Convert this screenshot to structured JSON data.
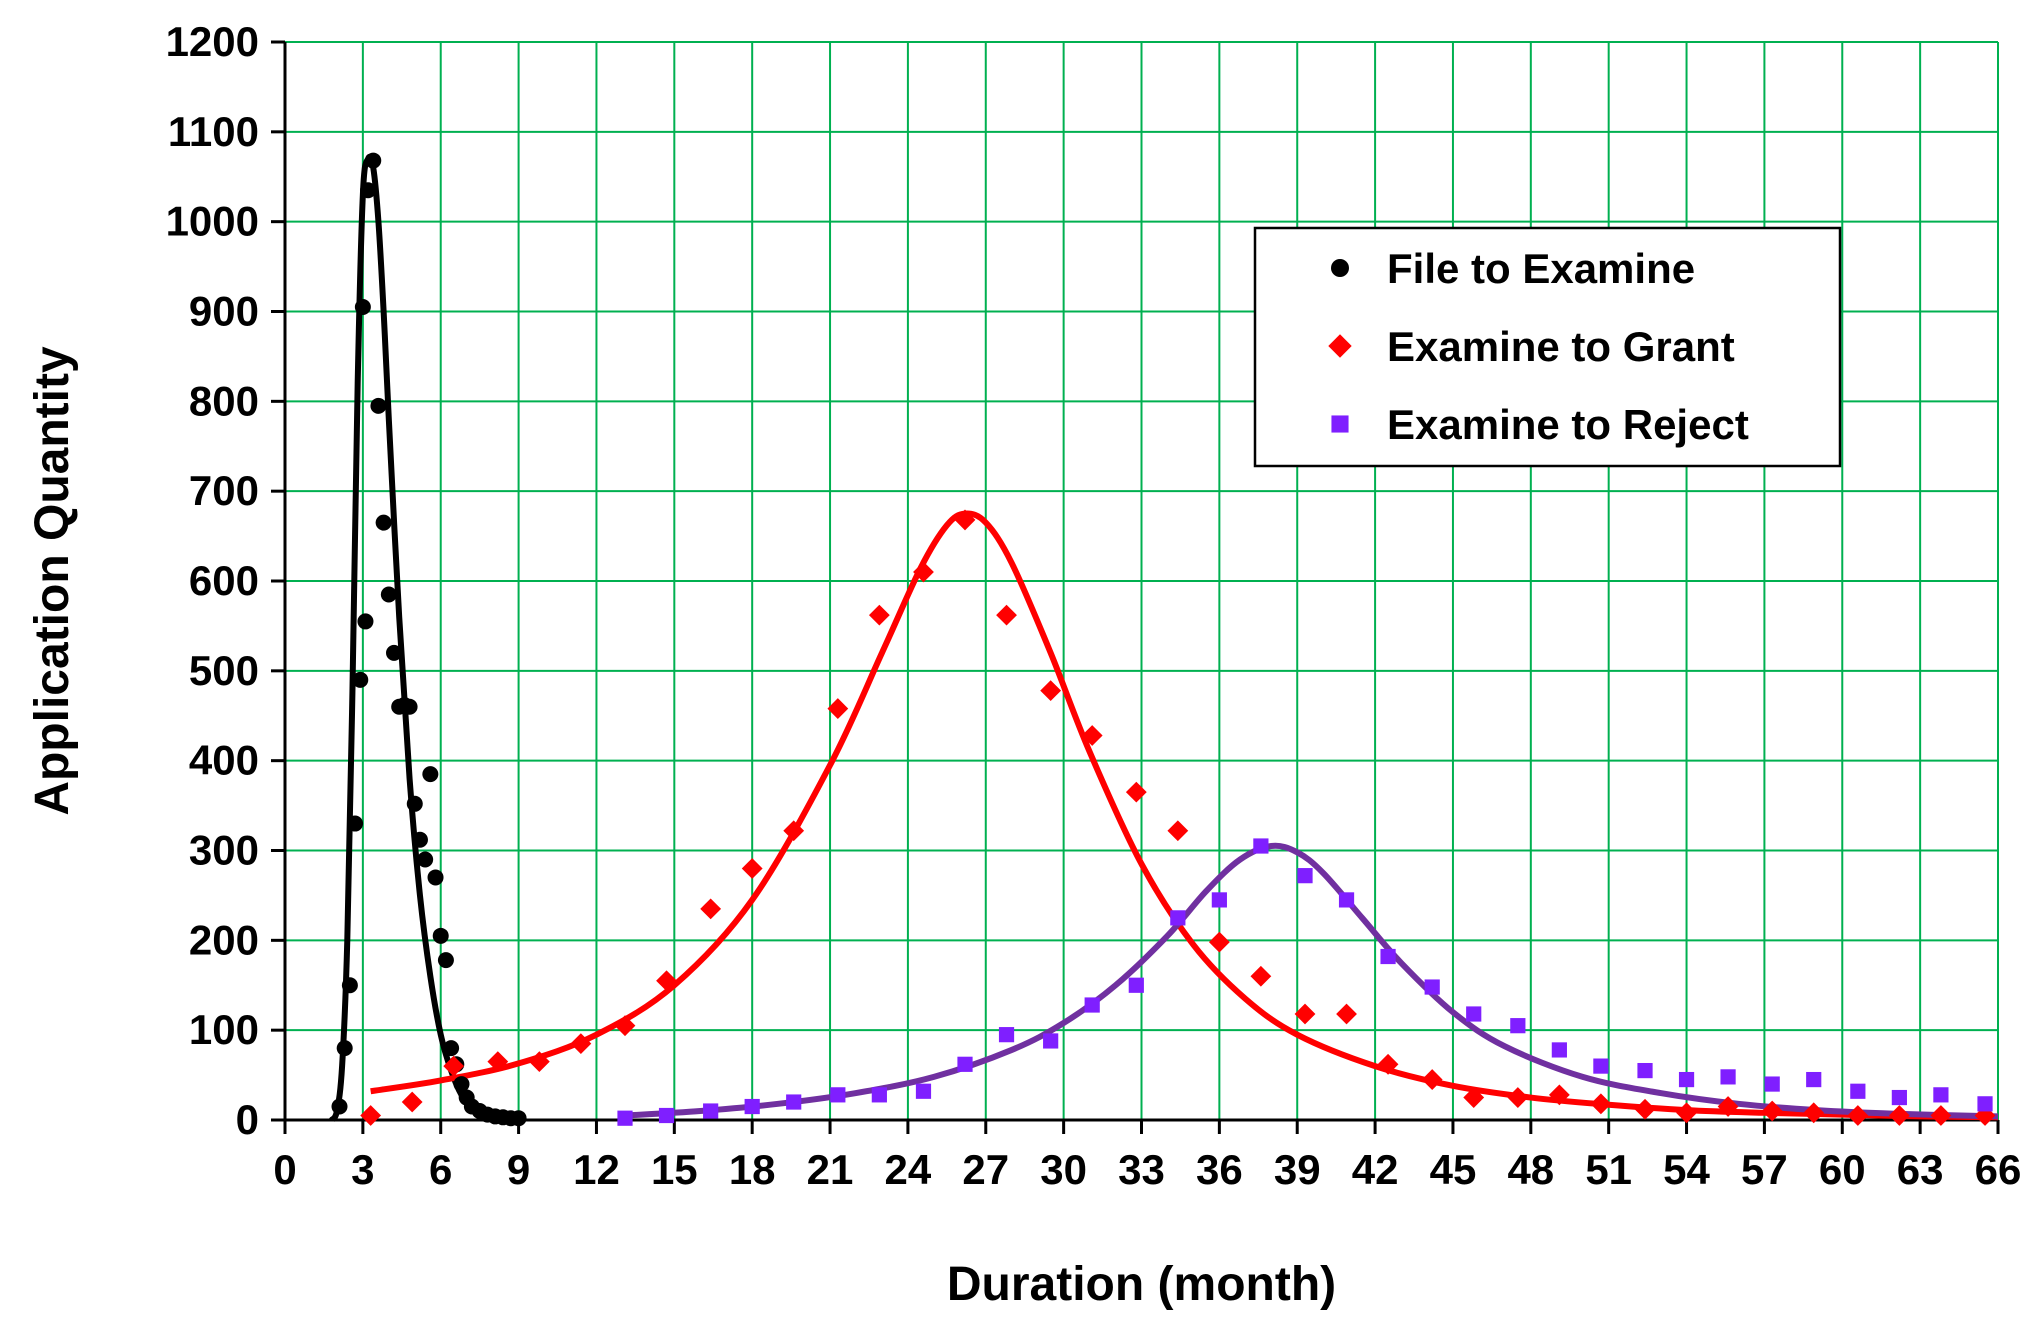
{
  "chart_data": {
    "type": "scatter",
    "title": "",
    "xlabel": "Duration (month)",
    "ylabel": "Application Quantity",
    "xlim": [
      0,
      66
    ],
    "ylim": [
      0,
      1200
    ],
    "xticks": [
      0,
      3,
      6,
      9,
      12,
      15,
      18,
      21,
      24,
      27,
      30,
      33,
      36,
      39,
      42,
      45,
      48,
      51,
      54,
      57,
      60,
      63,
      66
    ],
    "yticks": [
      0,
      100,
      200,
      300,
      400,
      500,
      600,
      700,
      800,
      900,
      1000,
      1100,
      1200
    ],
    "grid": true,
    "grid_color": "#00b050",
    "legend_position": "top-right",
    "series": [
      {
        "name": "File to Examine",
        "marker": "circle",
        "color": "#000000",
        "points": [
          [
            2.1,
            15
          ],
          [
            2.3,
            80
          ],
          [
            2.5,
            150
          ],
          [
            2.7,
            330
          ],
          [
            2.9,
            490
          ],
          [
            3.1,
            555
          ],
          [
            3.0,
            905
          ],
          [
            3.2,
            1035
          ],
          [
            3.4,
            1068
          ],
          [
            3.6,
            795
          ],
          [
            3.8,
            665
          ],
          [
            4.0,
            585
          ],
          [
            4.2,
            520
          ],
          [
            4.4,
            460
          ],
          [
            4.6,
            462
          ],
          [
            4.8,
            460
          ],
          [
            5.0,
            352
          ],
          [
            5.2,
            312
          ],
          [
            5.4,
            290
          ],
          [
            5.6,
            385
          ],
          [
            5.8,
            270
          ],
          [
            6.0,
            205
          ],
          [
            6.2,
            178
          ],
          [
            6.4,
            80
          ],
          [
            6.6,
            62
          ],
          [
            6.8,
            40
          ],
          [
            7.0,
            25
          ],
          [
            7.2,
            15
          ],
          [
            7.5,
            10
          ],
          [
            7.8,
            6
          ],
          [
            8.1,
            4
          ],
          [
            8.4,
            3
          ],
          [
            8.7,
            2
          ],
          [
            9.0,
            2
          ]
        ],
        "fit": [
          [
            1.8,
            0
          ],
          [
            2.0,
            10
          ],
          [
            2.2,
            60
          ],
          [
            2.4,
            200
          ],
          [
            2.6,
            480
          ],
          [
            2.8,
            820
          ],
          [
            3.0,
            1030
          ],
          [
            3.2,
            1070
          ],
          [
            3.4,
            1060
          ],
          [
            3.6,
            1000
          ],
          [
            3.8,
            900
          ],
          [
            4.0,
            780
          ],
          [
            4.4,
            560
          ],
          [
            4.8,
            380
          ],
          [
            5.2,
            250
          ],
          [
            5.6,
            160
          ],
          [
            6.0,
            95
          ],
          [
            6.4,
            55
          ],
          [
            6.8,
            28
          ],
          [
            7.2,
            14
          ],
          [
            7.6,
            6
          ],
          [
            8.0,
            3
          ],
          [
            8.6,
            1
          ],
          [
            9.2,
            0
          ]
        ]
      },
      {
        "name": "Examine to Grant",
        "marker": "diamond",
        "color": "#ff0000",
        "points": [
          [
            3.3,
            5
          ],
          [
            4.9,
            20
          ],
          [
            6.5,
            60
          ],
          [
            8.2,
            65
          ],
          [
            9.8,
            65
          ],
          [
            11.4,
            85
          ],
          [
            13.1,
            105
          ],
          [
            14.7,
            155
          ],
          [
            16.4,
            235
          ],
          [
            18.0,
            280
          ],
          [
            19.6,
            322
          ],
          [
            21.3,
            458
          ],
          [
            22.9,
            562
          ],
          [
            24.6,
            610
          ],
          [
            26.2,
            668
          ],
          [
            27.8,
            562
          ],
          [
            29.5,
            478
          ],
          [
            31.1,
            428
          ],
          [
            32.8,
            365
          ],
          [
            34.4,
            322
          ],
          [
            36.0,
            198
          ],
          [
            37.6,
            160
          ],
          [
            39.3,
            118
          ],
          [
            40.9,
            118
          ],
          [
            42.5,
            62
          ],
          [
            44.2,
            45
          ],
          [
            45.8,
            25
          ],
          [
            47.5,
            25
          ],
          [
            49.1,
            28
          ],
          [
            50.7,
            18
          ],
          [
            52.4,
            12
          ],
          [
            54.0,
            8
          ],
          [
            55.6,
            15
          ],
          [
            57.3,
            10
          ],
          [
            58.9,
            8
          ],
          [
            60.6,
            5
          ],
          [
            62.2,
            5
          ],
          [
            63.8,
            5
          ],
          [
            65.5,
            5
          ]
        ],
        "fit": [
          [
            3.3,
            32
          ],
          [
            6,
            44
          ],
          [
            9,
            63
          ],
          [
            12,
            95
          ],
          [
            15,
            150
          ],
          [
            18,
            245
          ],
          [
            21,
            395
          ],
          [
            23,
            520
          ],
          [
            24.5,
            615
          ],
          [
            25.5,
            662
          ],
          [
            26.2,
            675
          ],
          [
            27,
            665
          ],
          [
            28,
            620
          ],
          [
            29.5,
            520
          ],
          [
            31,
            410
          ],
          [
            33,
            285
          ],
          [
            35,
            195
          ],
          [
            37,
            135
          ],
          [
            39,
            95
          ],
          [
            42,
            60
          ],
          [
            45,
            38
          ],
          [
            48,
            25
          ],
          [
            51,
            17
          ],
          [
            54,
            11
          ],
          [
            57,
            8
          ],
          [
            60,
            6
          ],
          [
            63,
            4
          ],
          [
            66,
            3
          ]
        ]
      },
      {
        "name": "Examine to Reject",
        "marker": "square",
        "color": "#7f1fff",
        "points": [
          [
            13.1,
            2
          ],
          [
            14.7,
            5
          ],
          [
            16.4,
            10
          ],
          [
            18.0,
            15
          ],
          [
            19.6,
            20
          ],
          [
            21.3,
            28
          ],
          [
            22.9,
            28
          ],
          [
            24.6,
            32
          ],
          [
            26.2,
            62
          ],
          [
            27.8,
            95
          ],
          [
            29.5,
            88
          ],
          [
            31.1,
            128
          ],
          [
            32.8,
            150
          ],
          [
            34.4,
            225
          ],
          [
            36.0,
            245
          ],
          [
            37.6,
            305
          ],
          [
            39.3,
            272
          ],
          [
            40.9,
            245
          ],
          [
            42.5,
            182
          ],
          [
            44.2,
            148
          ],
          [
            45.8,
            118
          ],
          [
            47.5,
            105
          ],
          [
            49.1,
            78
          ],
          [
            50.7,
            60
          ],
          [
            52.4,
            55
          ],
          [
            54.0,
            45
          ],
          [
            55.6,
            48
          ],
          [
            57.3,
            40
          ],
          [
            58.9,
            45
          ],
          [
            60.6,
            32
          ],
          [
            62.2,
            25
          ],
          [
            63.8,
            28
          ],
          [
            65.5,
            18
          ]
        ],
        "fit": [
          [
            13.1,
            5
          ],
          [
            16,
            10
          ],
          [
            19,
            18
          ],
          [
            22,
            30
          ],
          [
            25,
            48
          ],
          [
            28,
            78
          ],
          [
            30,
            108
          ],
          [
            32,
            150
          ],
          [
            34,
            205
          ],
          [
            35.5,
            255
          ],
          [
            36.8,
            290
          ],
          [
            38,
            305
          ],
          [
            39,
            298
          ],
          [
            40,
            275
          ],
          [
            41.5,
            225
          ],
          [
            43,
            175
          ],
          [
            45,
            120
          ],
          [
            47,
            82
          ],
          [
            50,
            48
          ],
          [
            53,
            30
          ],
          [
            56,
            18
          ],
          [
            59,
            11
          ],
          [
            62,
            7
          ],
          [
            66,
            4
          ]
        ]
      }
    ]
  }
}
